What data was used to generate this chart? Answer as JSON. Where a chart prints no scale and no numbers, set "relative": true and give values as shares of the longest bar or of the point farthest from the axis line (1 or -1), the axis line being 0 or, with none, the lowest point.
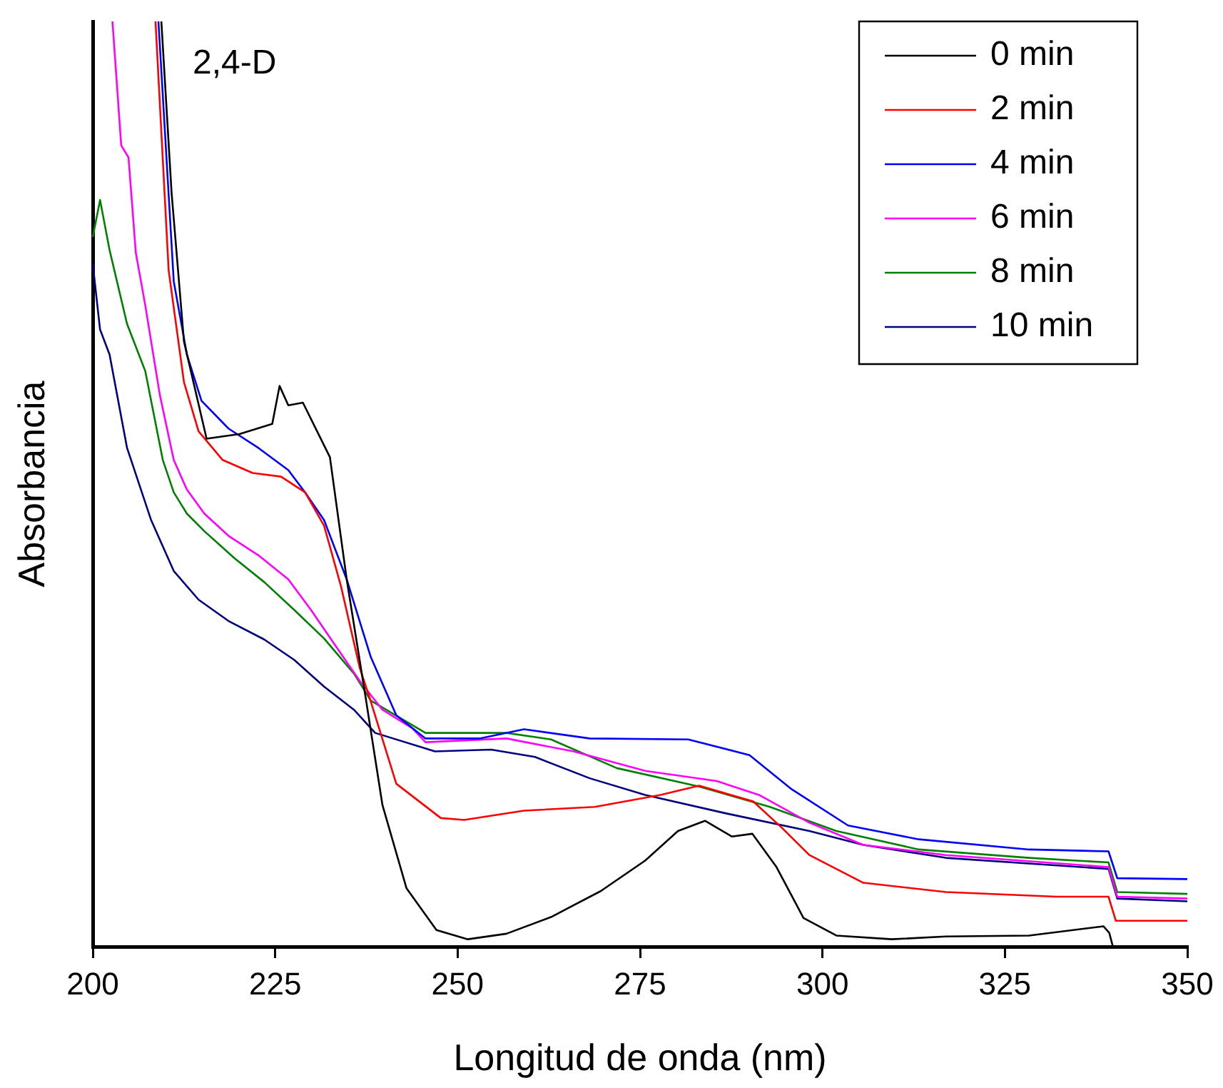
{
  "chart_data": {
    "type": "line",
    "xlabel": "Longitud de onda (nm)",
    "ylabel": "Absorbancia",
    "annotations": [
      "2,4-D"
    ],
    "relative": true,
    "xlim": [
      200,
      350
    ],
    "xticks": [
      200,
      225,
      250,
      275,
      300,
      325,
      350
    ],
    "grid": false,
    "legend": "top right",
    "marker": "none",
    "line_style": "solid",
    "series": [
      {
        "name": "0 min",
        "color": "#000000",
        "x": [
          209.4,
          210.8,
          212.5,
          215.6,
          220.1,
          224.6,
          225.6,
          226.8,
          228.8,
          232.5,
          234.8,
          237.4,
          239.7,
          243.0,
          247.1,
          251.4,
          256.7,
          262.8,
          269.6,
          275.7,
          280.2,
          283.9,
          287.6,
          290.4,
          293.7,
          297.4,
          301.9,
          309.5,
          316.9,
          328.3,
          338.5,
          339.3,
          339.8
        ],
        "values": [
          1.0,
          0.815,
          0.654,
          0.549,
          0.554,
          0.565,
          0.606,
          0.585,
          0.588,
          0.529,
          0.397,
          0.269,
          0.153,
          0.063,
          0.018,
          0.008,
          0.014,
          0.032,
          0.06,
          0.093,
          0.125,
          0.136,
          0.119,
          0.122,
          0.086,
          0.031,
          0.012,
          0.008,
          0.011,
          0.012,
          0.022,
          0.015,
          0.0
        ]
      },
      {
        "name": "2 min",
        "color": "#ff0000",
        "x": [
          208.6,
          210.4,
          212.5,
          214.5,
          217.8,
          221.9,
          225.8,
          229.1,
          231.7,
          234.0,
          236.6,
          237.9,
          241.6,
          247.7,
          250.9,
          259.1,
          268.8,
          277.8,
          283.1,
          290.5,
          294.5,
          298.2,
          305.6,
          316.9,
          332.0,
          339.2,
          340.2,
          350
        ],
        "values": [
          1.0,
          0.731,
          0.61,
          0.557,
          0.526,
          0.512,
          0.508,
          0.491,
          0.455,
          0.39,
          0.301,
          0.27,
          0.176,
          0.139,
          0.137,
          0.147,
          0.151,
          0.164,
          0.174,
          0.157,
          0.128,
          0.099,
          0.069,
          0.059,
          0.054,
          0.054,
          0.028,
          0.028
        ]
      },
      {
        "name": "4 min",
        "color": "#0000ff",
        "x": [
          209.0,
          211.1,
          212.9,
          214.9,
          218.6,
          222.7,
          226.8,
          229.1,
          231.7,
          234.8,
          238.1,
          241.6,
          245.6,
          253.0,
          259.1,
          268.1,
          281.6,
          290.0,
          295.8,
          303.5,
          313.2,
          328.3,
          339.2,
          340.4,
          350
        ],
        "values": [
          1.0,
          0.719,
          0.64,
          0.59,
          0.56,
          0.539,
          0.515,
          0.491,
          0.461,
          0.397,
          0.313,
          0.25,
          0.225,
          0.225,
          0.235,
          0.225,
          0.224,
          0.207,
          0.17,
          0.131,
          0.116,
          0.105,
          0.103,
          0.074,
          0.073
        ]
      },
      {
        "name": "6 min",
        "color": "#ff00ff",
        "x": [
          202.7,
          203.9,
          204.9,
          205.9,
          207.2,
          209.2,
          211.1,
          212.9,
          215.3,
          218.6,
          222.7,
          226.8,
          229.9,
          233.2,
          236.6,
          239.7,
          243.8,
          245.6,
          256.7,
          265.9,
          275.7,
          285.5,
          291.3,
          298.2,
          305.6,
          316.9,
          339.2,
          340.4,
          350
        ],
        "values": [
          1.0,
          0.866,
          0.853,
          0.75,
          0.693,
          0.596,
          0.526,
          0.494,
          0.468,
          0.444,
          0.423,
          0.397,
          0.364,
          0.326,
          0.287,
          0.256,
          0.236,
          0.221,
          0.225,
          0.211,
          0.19,
          0.179,
          0.164,
          0.134,
          0.11,
          0.099,
          0.086,
          0.054,
          0.052
        ]
      },
      {
        "name": "8 min",
        "color": "#008000",
        "x": [
          200,
          201.0,
          202.3,
          204.7,
          207.2,
          209.6,
          211.1,
          212.9,
          215.3,
          219.4,
          223.5,
          227.6,
          231.7,
          235.8,
          238.1,
          245.6,
          256.7,
          262.8,
          271.8,
          283.1,
          292.8,
          301.9,
          313.2,
          328.3,
          339.2,
          340.4,
          350
        ],
        "values": [
          0.767,
          0.807,
          0.753,
          0.673,
          0.622,
          0.526,
          0.491,
          0.468,
          0.449,
          0.42,
          0.394,
          0.364,
          0.333,
          0.295,
          0.266,
          0.231,
          0.231,
          0.224,
          0.193,
          0.173,
          0.151,
          0.125,
          0.105,
          0.096,
          0.091,
          0.059,
          0.057
        ]
      },
      {
        "name": "10 min",
        "color": "#000080",
        "x": [
          200,
          201.0,
          202.3,
          204.7,
          208.0,
          211.1,
          214.5,
          218.6,
          223.5,
          227.6,
          231.7,
          235.8,
          238.7,
          246.9,
          254.6,
          260.6,
          268.1,
          275.7,
          286.8,
          298.2,
          305.6,
          316.9,
          339.2,
          340.4,
          350
        ],
        "values": [
          0.738,
          0.667,
          0.64,
          0.539,
          0.461,
          0.406,
          0.375,
          0.352,
          0.332,
          0.31,
          0.281,
          0.256,
          0.231,
          0.211,
          0.213,
          0.205,
          0.182,
          0.164,
          0.144,
          0.125,
          0.11,
          0.096,
          0.084,
          0.052,
          0.049
        ]
      }
    ]
  }
}
